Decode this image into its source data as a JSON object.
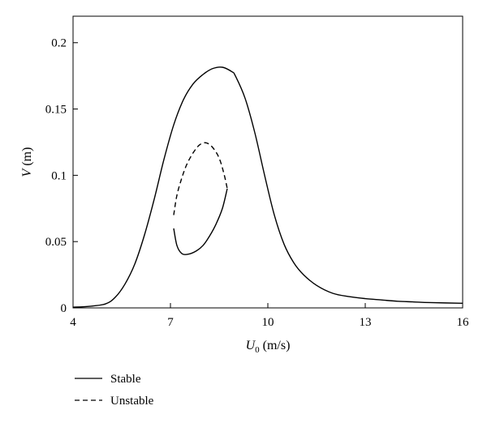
{
  "chart_data": {
    "type": "line",
    "xlabel": {
      "main": "U",
      "sub": "0",
      "unit": " (m/s)"
    },
    "ylabel": {
      "main": "V",
      "unit": " (m)"
    },
    "xlim": [
      4,
      16
    ],
    "ylim": [
      0,
      0.22
    ],
    "xticks": [
      4,
      7,
      10,
      13,
      16
    ],
    "xtick_labels": [
      "4",
      "7",
      "10",
      "13",
      "16"
    ],
    "yticks": [
      0,
      0.05,
      0.1,
      0.15,
      0.2
    ],
    "ytick_labels": [
      "0",
      "0.05",
      "0.1",
      "0.15",
      "0.2"
    ],
    "grid": false,
    "legend_position": "below-left",
    "series": [
      {
        "name": "Stable",
        "style": "solid",
        "color": "#000000",
        "x": [
          4.0,
          4.5,
          5.0,
          5.3,
          5.6,
          5.9,
          6.2,
          6.5,
          6.8,
          7.1,
          7.4,
          7.7,
          8.0,
          8.3,
          8.6,
          8.9,
          9.0,
          9.3,
          9.6,
          9.9,
          10.2,
          10.5,
          10.8,
          11.1,
          11.5,
          12.0,
          12.5,
          13.0,
          13.5,
          14.0,
          14.5,
          15.0,
          16.0
        ],
        "y": [
          0.0005,
          0.0012,
          0.003,
          0.008,
          0.018,
          0.033,
          0.055,
          0.082,
          0.112,
          0.138,
          0.157,
          0.169,
          0.176,
          0.1805,
          0.1815,
          0.178,
          0.175,
          0.158,
          0.132,
          0.1,
          0.07,
          0.048,
          0.034,
          0.025,
          0.017,
          0.011,
          0.0085,
          0.007,
          0.006,
          0.005,
          0.0045,
          0.004,
          0.0035
        ]
      },
      {
        "name": "Unstable",
        "style": "dashed",
        "color": "#000000",
        "x": [
          7.1,
          7.2,
          7.35,
          7.5,
          7.7,
          7.9,
          8.1,
          8.3,
          8.5,
          8.65,
          8.75
        ],
        "y": [
          0.07,
          0.085,
          0.098,
          0.108,
          0.117,
          0.123,
          0.1245,
          0.121,
          0.113,
          0.101,
          0.09
        ]
      },
      {
        "name": "",
        "style": "solid",
        "color": "#000000",
        "x": [
          7.1,
          7.2,
          7.35,
          7.55,
          7.8,
          8.0,
          8.2,
          8.4,
          8.6,
          8.75
        ],
        "y": [
          0.06,
          0.047,
          0.041,
          0.0405,
          0.043,
          0.047,
          0.054,
          0.063,
          0.075,
          0.09
        ]
      }
    ]
  },
  "legend": [
    {
      "label": "Stable",
      "style": "solid"
    },
    {
      "label": "Unstable",
      "style": "dashed"
    }
  ]
}
